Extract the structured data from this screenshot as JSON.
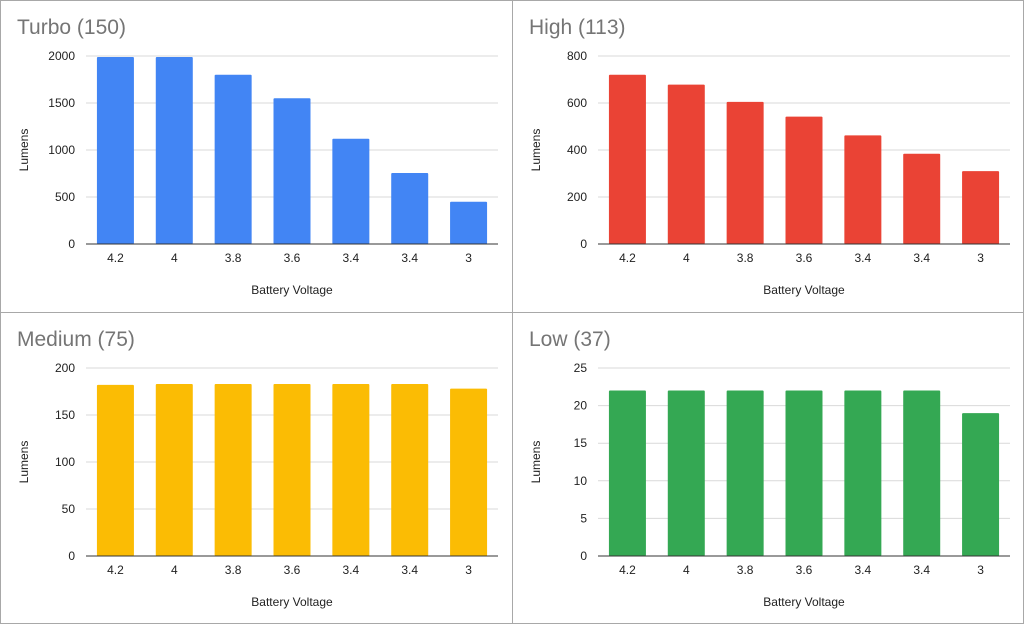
{
  "chart_data": [
    {
      "type": "bar",
      "title": "Turbo (150)",
      "xlabel": "Battery Voltage",
      "ylabel": "Lumens",
      "categories": [
        "4.2",
        "4",
        "3.8",
        "3.6",
        "3.4",
        "3.4",
        "3"
      ],
      "values": [
        1990,
        1990,
        1800,
        1550,
        1120,
        755,
        450
      ],
      "ylim": [
        0,
        2000
      ],
      "yticks": [
        0,
        500,
        1000,
        1500,
        2000
      ],
      "color": "#4285f4",
      "grid": true,
      "legend": "none"
    },
    {
      "type": "bar",
      "title": "High (113)",
      "xlabel": "Battery Voltage",
      "ylabel": "Lumens",
      "categories": [
        "4.2",
        "4",
        "3.8",
        "3.6",
        "3.4",
        "3.4",
        "3"
      ],
      "values": [
        720,
        678,
        605,
        542,
        462,
        384,
        310
      ],
      "ylim": [
        0,
        800
      ],
      "yticks": [
        0,
        200,
        400,
        600,
        800
      ],
      "color": "#ea4335",
      "grid": true,
      "legend": "none"
    },
    {
      "type": "bar",
      "title": "Medium (75)",
      "xlabel": "Battery Voltage",
      "ylabel": "Lumens",
      "categories": [
        "4.2",
        "4",
        "3.8",
        "3.6",
        "3.4",
        "3.4",
        "3"
      ],
      "values": [
        182,
        183,
        183,
        183,
        183,
        183,
        178
      ],
      "ylim": [
        0,
        200
      ],
      "yticks": [
        0,
        50,
        100,
        150,
        200
      ],
      "color": "#fbbc04",
      "grid": true,
      "legend": "none"
    },
    {
      "type": "bar",
      "title": "Low (37)",
      "xlabel": "Battery Voltage",
      "ylabel": "Lumens",
      "categories": [
        "4.2",
        "4",
        "3.8",
        "3.6",
        "3.4",
        "3.4",
        "3"
      ],
      "values": [
        22,
        22,
        22,
        22,
        22,
        22,
        19
      ],
      "ylim": [
        0,
        25
      ],
      "yticks": [
        0,
        5,
        10,
        15,
        20,
        25
      ],
      "color": "#34a853",
      "grid": true,
      "legend": "none"
    }
  ]
}
